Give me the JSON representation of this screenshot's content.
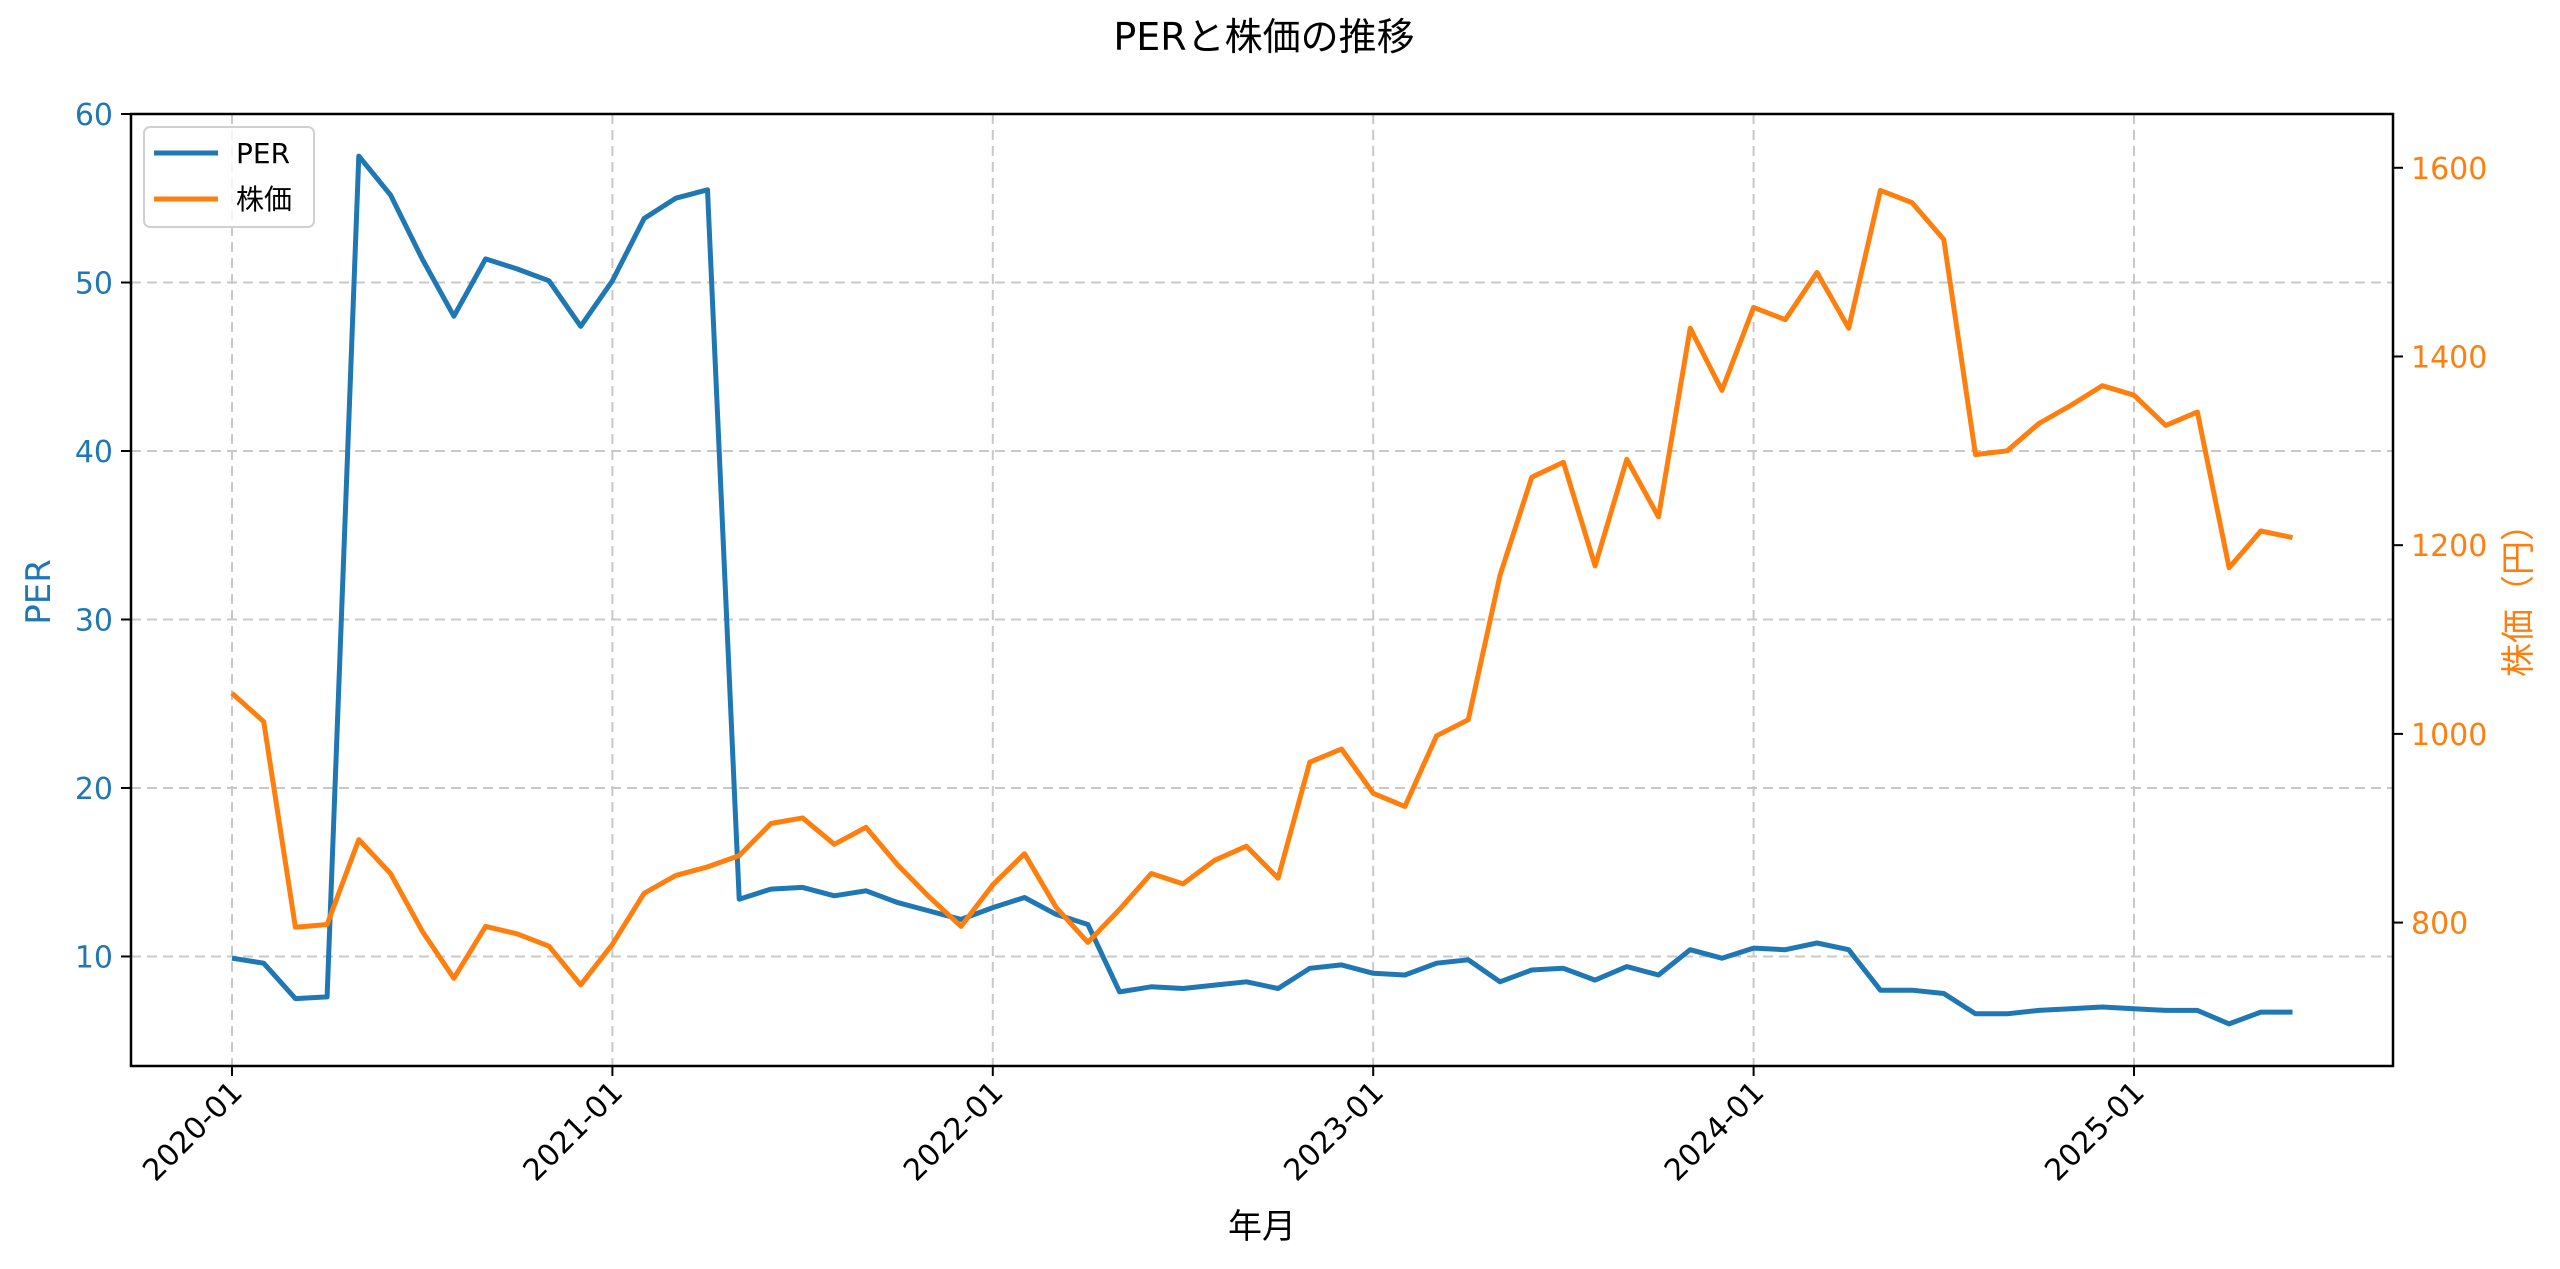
{
  "chart_data": {
    "type": "line",
    "title": "PERと株価の推移",
    "xlabel": "年月",
    "ylabel": "PER",
    "ylabel_right": "株価（円）",
    "ylim": [
      3.5,
      60
    ],
    "ylim_right": [
      648,
      1657
    ],
    "yticks": [
      10,
      20,
      30,
      40,
      50,
      60
    ],
    "yticks_right": [
      800,
      1000,
      1200,
      1400,
      1600
    ],
    "xticks": [
      "2020-01",
      "2021-01",
      "2022-01",
      "2023-01",
      "2024-01",
      "2025-01"
    ],
    "grid": true,
    "legend_position": "upper left",
    "x": [
      "2020-01",
      "2020-02",
      "2020-03",
      "2020-04",
      "2020-05",
      "2020-06",
      "2020-07",
      "2020-08",
      "2020-09",
      "2020-10",
      "2020-11",
      "2020-12",
      "2021-01",
      "2021-02",
      "2021-03",
      "2021-04",
      "2021-05",
      "2021-06",
      "2021-07",
      "2021-08",
      "2021-09",
      "2021-10",
      "2021-11",
      "2021-12",
      "2022-01",
      "2022-02",
      "2022-03",
      "2022-04",
      "2022-05",
      "2022-06",
      "2022-07",
      "2022-08",
      "2022-09",
      "2022-10",
      "2022-11",
      "2022-12",
      "2023-01",
      "2023-02",
      "2023-03",
      "2023-04",
      "2023-05",
      "2023-06",
      "2023-07",
      "2023-08",
      "2023-09",
      "2023-10",
      "2023-11",
      "2023-12",
      "2024-01",
      "2024-02",
      "2024-03",
      "2024-04",
      "2024-05",
      "2024-06",
      "2024-07",
      "2024-08",
      "2024-09",
      "2024-10",
      "2024-11",
      "2024-12",
      "2025-01",
      "2025-02",
      "2025-03",
      "2025-04",
      "2025-05",
      "2025-06"
    ],
    "series": [
      {
        "name": "PER",
        "axis": "left",
        "color": "#1f77b4",
        "values": [
          9.9,
          9.6,
          7.5,
          7.6,
          57.5,
          55.2,
          51.4,
          48.0,
          51.4,
          50.8,
          50.1,
          47.4,
          50.1,
          53.8,
          55.0,
          55.5,
          13.4,
          14.0,
          14.1,
          13.6,
          13.9,
          13.2,
          12.7,
          12.2,
          12.9,
          13.5,
          12.5,
          11.9,
          7.9,
          8.2,
          8.1,
          8.3,
          8.5,
          8.1,
          9.3,
          9.5,
          9.0,
          8.9,
          9.6,
          9.8,
          8.5,
          9.2,
          9.3,
          8.6,
          9.4,
          8.9,
          10.4,
          9.9,
          10.5,
          10.4,
          10.8,
          10.4,
          8.0,
          8.0,
          7.8,
          6.6,
          6.6,
          6.8,
          6.9,
          7.0,
          6.9,
          6.8,
          6.8,
          6.0,
          6.7,
          6.7
        ]
      },
      {
        "name": "株価",
        "axis": "right",
        "color": "#ff7f0e",
        "values": [
          1043,
          1013,
          795,
          798,
          888,
          852,
          791,
          741,
          796,
          788,
          775,
          734,
          777,
          831,
          850,
          859,
          871,
          905,
          911,
          883,
          901,
          861,
          827,
          796,
          840,
          873,
          816,
          779,
          814,
          852,
          841,
          866,
          881,
          847,
          970,
          984,
          937,
          923,
          998,
          1015,
          1168,
          1272,
          1288,
          1178,
          1291,
          1230,
          1430,
          1364,
          1452,
          1439,
          1489,
          1430,
          1576,
          1563,
          1524,
          1296,
          1300,
          1329,
          1348,
          1369,
          1359,
          1327,
          1341,
          1176,
          1215,
          1208
        ]
      }
    ]
  },
  "legend": {
    "items": [
      "PER",
      "株価"
    ]
  }
}
